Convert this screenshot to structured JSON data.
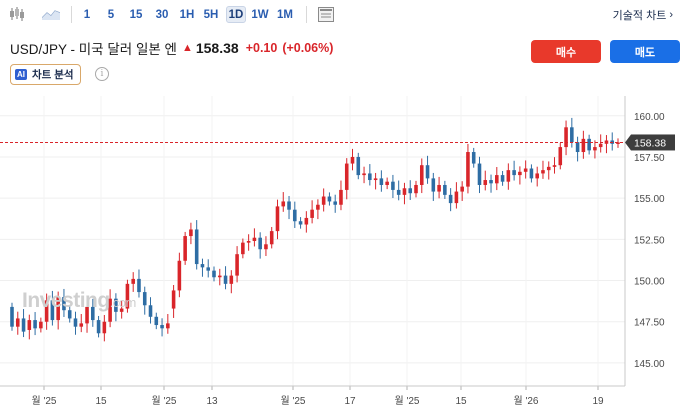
{
  "toolbar": {
    "chart_type_icons": [
      "candlestick-icon",
      "area-icon"
    ],
    "intervals": [
      "1",
      "5",
      "15",
      "30",
      "1H",
      "5H",
      "1D",
      "1W",
      "1M"
    ],
    "active_interval": "1D",
    "layout_icon": "layout-icon",
    "tech_chart_label": "기술적 차트"
  },
  "header": {
    "pair_title": "USD/JPY - 미국 달러 일본 엔",
    "direction_icon": "up-arrow-icon",
    "price": "158.38",
    "change": "+0.10",
    "change_pct": "(+0.06%)"
  },
  "actions": {
    "buy_label": "매수",
    "sell_label": "매도"
  },
  "ai_analysis": {
    "badge": "AI",
    "label": "차트 분석"
  },
  "watermark": {
    "brand": "Investing",
    "suffix": ".com"
  },
  "colors": {
    "up": "#d9252a",
    "down": "#2e6da4",
    "buy": "#e8392b",
    "sell": "#1a6fe6",
    "price_tag": "#3d3d3d"
  },
  "chart_data": {
    "type": "candlestick",
    "title": "",
    "xlabel": "",
    "ylabel": "",
    "ylim": [
      143.6,
      161.2
    ],
    "y_ticks": [
      "160.00",
      "157.50",
      "155.00",
      "152.50",
      "150.00",
      "147.50",
      "145.00"
    ],
    "x_tick_labels": [
      "월 '25",
      "15",
      "월 '25",
      "13",
      "월 '25",
      "17",
      "월 '25",
      "15",
      "월 '26",
      "19"
    ],
    "current_price_label": "158.38",
    "current_price": 158.38,
    "grid": true,
    "candles_oc": [
      [
        148.4,
        147.2
      ],
      [
        147.2,
        147.7
      ],
      [
        147.7,
        146.9
      ],
      [
        147.0,
        147.6
      ],
      [
        147.6,
        147.1
      ],
      [
        147.1,
        147.5
      ],
      [
        147.5,
        148.8
      ],
      [
        148.8,
        147.6
      ],
      [
        147.6,
        149.0
      ],
      [
        149.0,
        148.2
      ],
      [
        148.2,
        147.7
      ],
      [
        147.7,
        147.2
      ],
      [
        147.2,
        147.4
      ],
      [
        147.4,
        148.4
      ],
      [
        148.4,
        147.6
      ],
      [
        147.6,
        146.8
      ],
      [
        146.8,
        147.5
      ],
      [
        147.5,
        148.9
      ],
      [
        148.9,
        148.1
      ],
      [
        148.1,
        148.3
      ],
      [
        148.3,
        149.8
      ],
      [
        149.8,
        150.1
      ],
      [
        150.1,
        149.3
      ],
      [
        149.3,
        148.5
      ],
      [
        148.5,
        147.8
      ],
      [
        147.8,
        147.3
      ],
      [
        147.3,
        147.1
      ],
      [
        147.1,
        147.4
      ],
      [
        148.3,
        149.4
      ],
      [
        149.4,
        151.2
      ],
      [
        151.2,
        152.7
      ],
      [
        152.7,
        153.1
      ],
      [
        153.1,
        151.0
      ],
      [
        151.0,
        150.8
      ],
      [
        150.8,
        150.6
      ],
      [
        150.6,
        150.2
      ],
      [
        150.2,
        150.3
      ],
      [
        150.3,
        149.8
      ],
      [
        149.8,
        150.3
      ],
      [
        150.3,
        151.6
      ],
      [
        151.6,
        152.3
      ],
      [
        152.3,
        152.4
      ],
      [
        152.4,
        152.6
      ],
      [
        152.6,
        151.9
      ],
      [
        151.9,
        152.2
      ],
      [
        152.2,
        153.0
      ],
      [
        153.0,
        154.5
      ],
      [
        154.5,
        154.8
      ],
      [
        154.8,
        154.3
      ],
      [
        154.3,
        153.6
      ],
      [
        153.6,
        153.4
      ],
      [
        153.4,
        153.8
      ],
      [
        153.8,
        154.3
      ],
      [
        154.3,
        154.6
      ],
      [
        154.6,
        155.1
      ],
      [
        155.1,
        154.8
      ],
      [
        154.8,
        154.6
      ],
      [
        154.6,
        155.5
      ],
      [
        155.5,
        157.1
      ],
      [
        157.1,
        157.5
      ],
      [
        157.5,
        156.4
      ],
      [
        156.4,
        156.5
      ],
      [
        156.5,
        156.1
      ],
      [
        156.1,
        156.2
      ],
      [
        156.2,
        155.8
      ],
      [
        155.8,
        156.0
      ],
      [
        156.0,
        155.5
      ],
      [
        155.5,
        155.2
      ],
      [
        155.2,
        155.6
      ],
      [
        155.6,
        155.3
      ],
      [
        155.3,
        155.8
      ],
      [
        155.8,
        157.0
      ],
      [
        157.0,
        156.2
      ],
      [
        156.2,
        155.4
      ],
      [
        155.4,
        155.8
      ],
      [
        155.8,
        155.2
      ],
      [
        155.2,
        154.7
      ],
      [
        154.7,
        155.4
      ],
      [
        155.4,
        155.7
      ],
      [
        155.7,
        157.8
      ],
      [
        157.8,
        157.1
      ],
      [
        157.1,
        155.8
      ],
      [
        155.8,
        156.1
      ],
      [
        156.1,
        155.9
      ],
      [
        155.9,
        156.4
      ],
      [
        156.4,
        156.0
      ],
      [
        156.0,
        156.7
      ],
      [
        156.7,
        156.4
      ],
      [
        156.4,
        156.6
      ],
      [
        156.6,
        156.8
      ],
      [
        156.8,
        156.2
      ],
      [
        156.2,
        156.5
      ],
      [
        156.5,
        156.7
      ],
      [
        156.7,
        156.9
      ],
      [
        156.9,
        157.0
      ],
      [
        157.0,
        158.1
      ],
      [
        158.1,
        159.3
      ],
      [
        159.3,
        158.4
      ],
      [
        158.4,
        157.8
      ],
      [
        157.8,
        158.6
      ],
      [
        158.6,
        157.9
      ],
      [
        157.9,
        158.1
      ],
      [
        158.1,
        158.3
      ],
      [
        158.3,
        158.5
      ],
      [
        158.5,
        158.3
      ],
      [
        158.3,
        158.38
      ]
    ]
  }
}
